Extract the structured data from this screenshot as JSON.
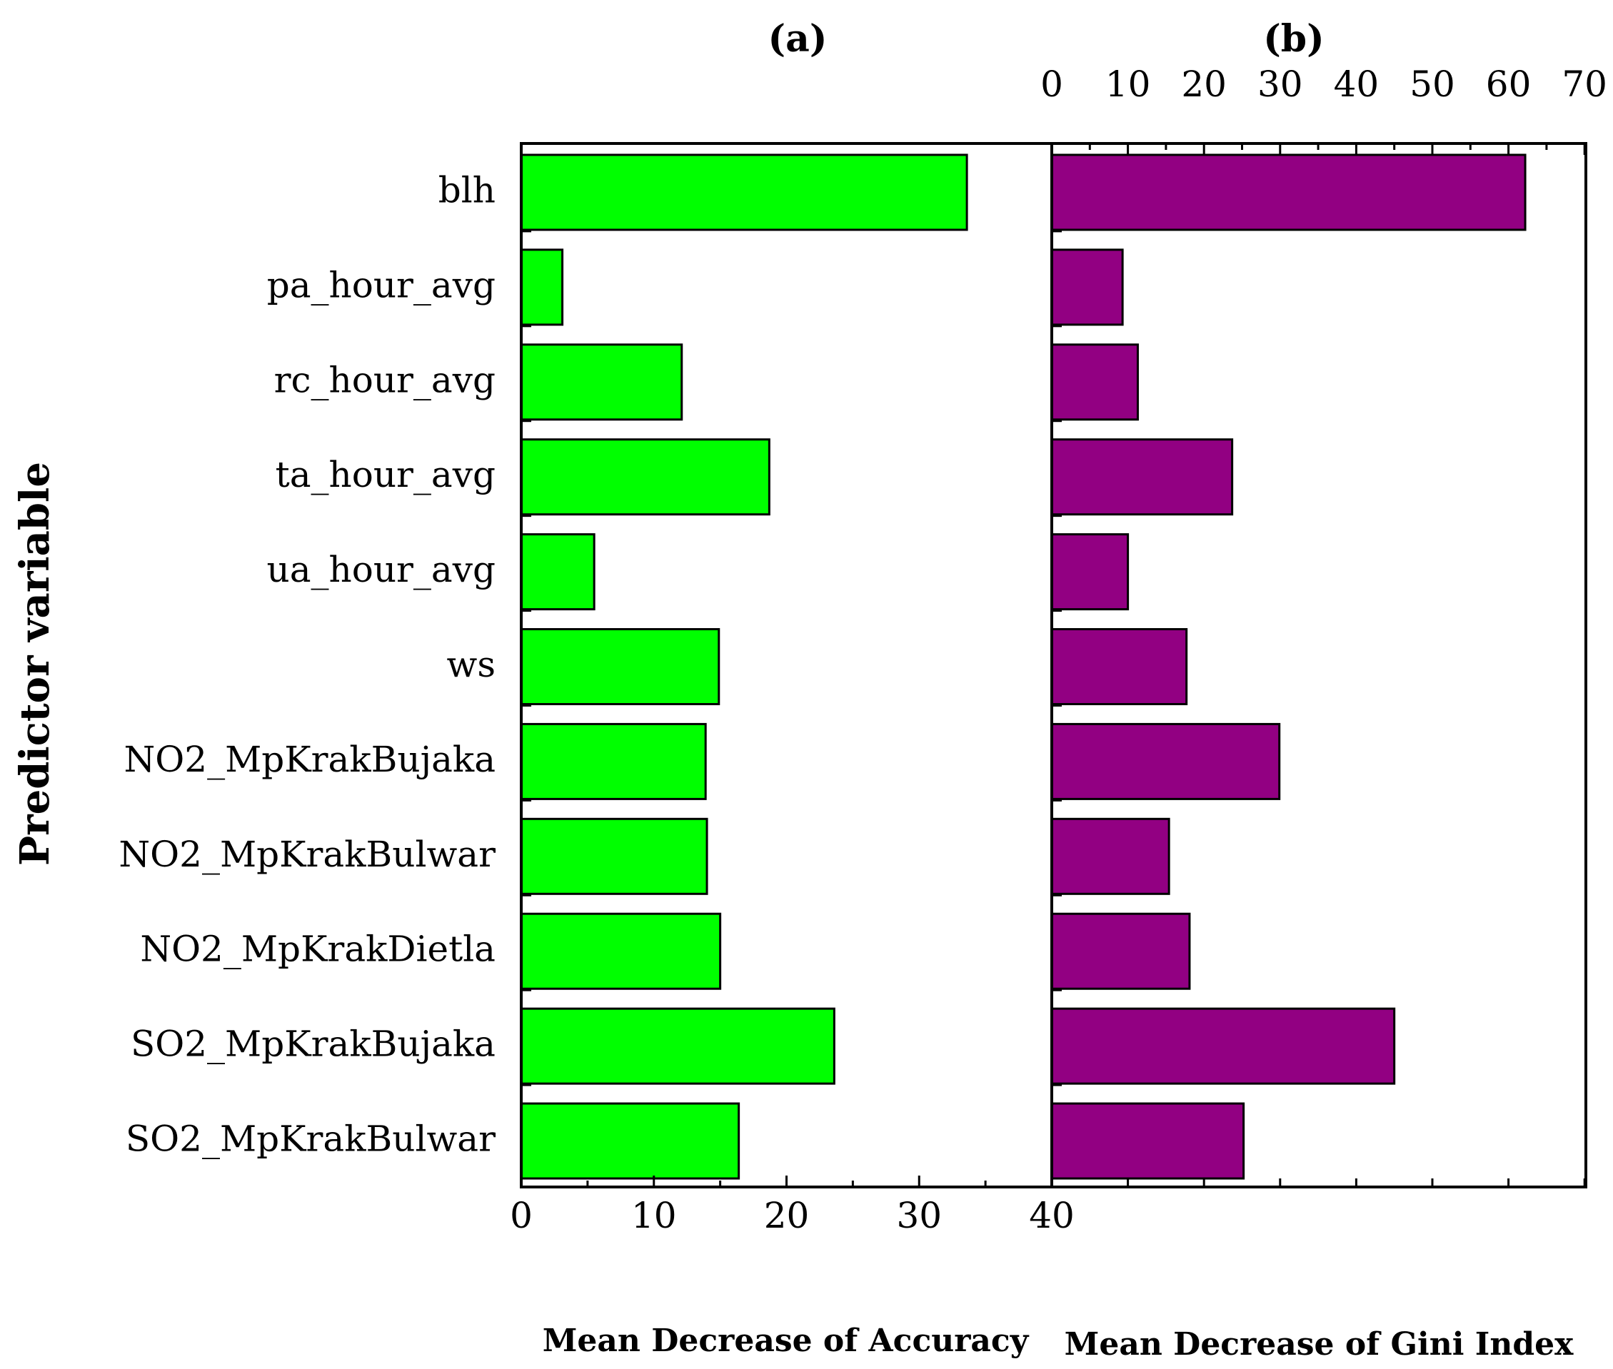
{
  "chart_data": [
    {
      "type": "bar",
      "orientation": "horizontal",
      "panel": "(a)",
      "title": "(a)",
      "xlabel": "Mean Decrease of Accuracy",
      "ylabel": "Predictor variable",
      "xlim": [
        0,
        40
      ],
      "xticks": [
        "0",
        "10",
        "20",
        "30",
        "40"
      ],
      "tick_position": "bottom",
      "bar_color": "#00ff00",
      "categories": [
        "blh",
        "pa_hour_avg",
        "rc_hour_avg",
        "ta_hour_avg",
        "ua_hour_avg",
        "ws",
        "NO2_MpKrakBujaka",
        "NO2_MpKrakBulwar",
        "NO2_MpKrakDietla",
        "SO2_MpKrakBujaka",
        "SO2_MpKrakBulwar"
      ],
      "values": [
        33.6,
        3.1,
        12.1,
        18.7,
        5.5,
        14.9,
        13.9,
        14.0,
        15.0,
        23.6,
        16.4
      ]
    },
    {
      "type": "bar",
      "orientation": "horizontal",
      "panel": "(b)",
      "title": "(b)",
      "xlabel": "Mean Decrease of Gini Index",
      "xlim": [
        0,
        70
      ],
      "xticks": [
        "0",
        "10",
        "20",
        "30",
        "40",
        "50",
        "60",
        "70"
      ],
      "tick_position": "top",
      "bar_color": "#920082",
      "categories": [
        "blh",
        "pa_hour_avg",
        "rc_hour_avg",
        "ta_hour_avg",
        "ua_hour_avg",
        "ws",
        "NO2_MpKrakBujaka",
        "NO2_MpKrakBulwar",
        "NO2_MpKrakDietla",
        "SO2_MpKrakBujaka",
        "SO2_MpKrakBulwar"
      ],
      "values": [
        62.2,
        9.3,
        11.3,
        23.7,
        10.0,
        17.7,
        29.9,
        15.4,
        18.1,
        45.0,
        25.2
      ]
    }
  ]
}
